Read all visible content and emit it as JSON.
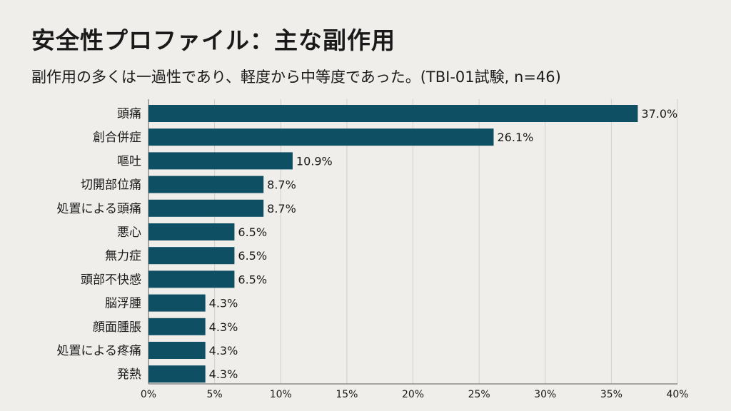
{
  "chart_data": {
    "type": "bar",
    "orientation": "horizontal",
    "title": "安全性プロファイル：主な副作用",
    "subtitle": "副作用の多くは一過性であり、軽度から中等度であった。(TBI-01試験, n=46)",
    "categories": [
      "頭痛",
      "創合併症",
      "嘔吐",
      "切開部位痛",
      "処置による頭痛",
      "悪心",
      "無力症",
      "頭部不快感",
      "脳浮腫",
      "顔面腫脹",
      "処置による疼痛",
      "発熱"
    ],
    "values": [
      37.0,
      26.1,
      10.9,
      8.7,
      8.7,
      6.5,
      6.5,
      6.5,
      4.3,
      4.3,
      4.3,
      4.3
    ],
    "value_labels": [
      "37.0%",
      "26.1%",
      "10.9%",
      "8.7%",
      "8.7%",
      "6.5%",
      "6.5%",
      "6.5%",
      "4.3%",
      "4.3%",
      "4.3%",
      "4.3%"
    ],
    "xlim": [
      0,
      40
    ],
    "xticks": [
      0,
      5,
      10,
      15,
      20,
      25,
      30,
      35,
      40
    ],
    "xtick_labels": [
      "0%",
      "5%",
      "10%",
      "15%",
      "20%",
      "25%",
      "30%",
      "35%",
      "40%"
    ],
    "xlabel": "",
    "ylabel": "",
    "grid": "vertical",
    "bar_color": "#0e4f63"
  }
}
